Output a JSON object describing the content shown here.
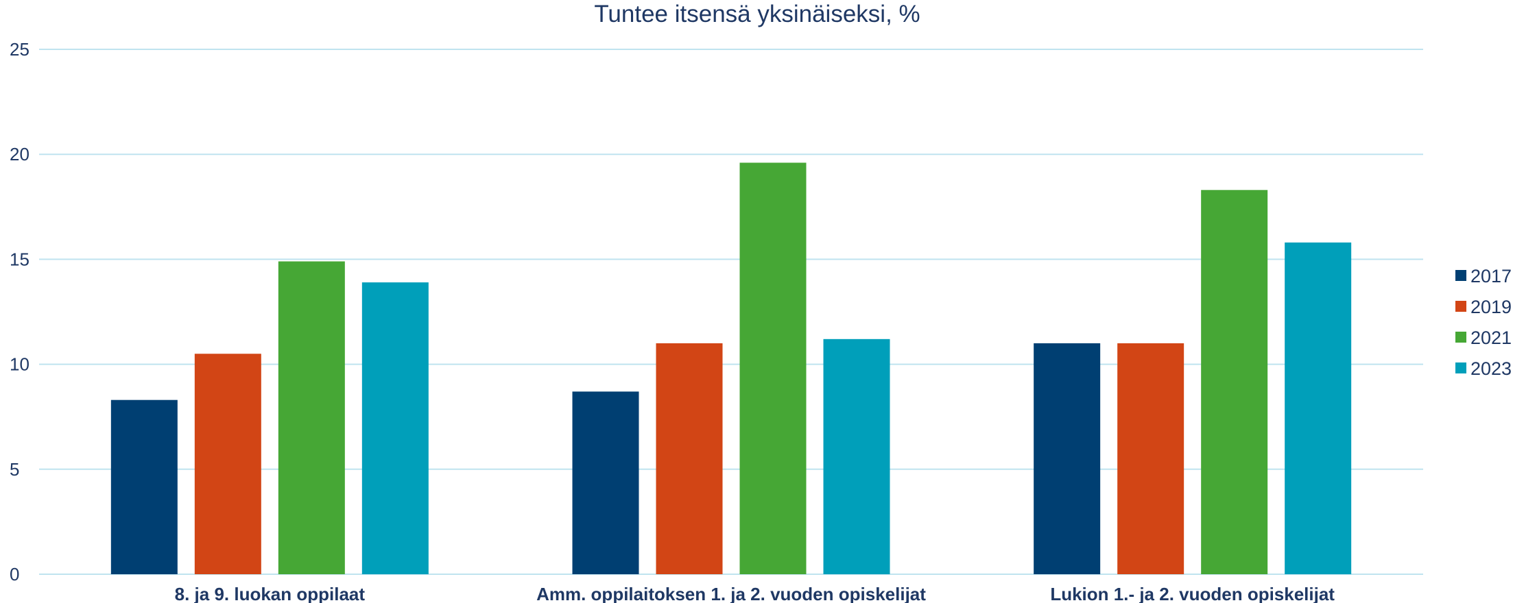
{
  "chart_data": {
    "type": "bar",
    "title": "Tuntee itsensä yksinäiseksi, %",
    "xlabel": "",
    "ylabel": "",
    "ylim": [
      0,
      25
    ],
    "yticks": [
      0,
      5,
      10,
      15,
      20,
      25
    ],
    "grid": true,
    "legend_position": "right",
    "categories": [
      "8. ja 9. luokan oppilaat",
      "Amm. oppilaitoksen 1. ja 2. vuoden opiskelijat",
      "Lukion 1.- ja 2. vuoden opiskelijat"
    ],
    "series": [
      {
        "name": "2017",
        "color": "#003f72",
        "values": [
          8.3,
          8.7,
          11.0
        ]
      },
      {
        "name": "2019",
        "color": "#d24515",
        "values": [
          10.5,
          11.0,
          11.0
        ]
      },
      {
        "name": "2021",
        "color": "#46a735",
        "values": [
          14.9,
          19.6,
          18.3
        ]
      },
      {
        "name": "2023",
        "color": "#009fba",
        "values": [
          13.9,
          11.2,
          15.8
        ]
      }
    ]
  }
}
